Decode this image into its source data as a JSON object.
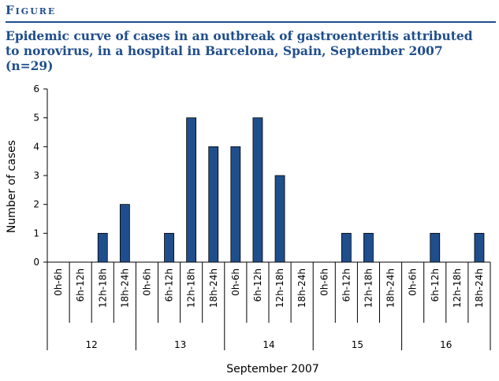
{
  "header": {
    "figure_label": "Figure",
    "title": "Epidemic curve of cases in an outbreak of gastroenteritis attributed to norovirus, in a hospital in Barcelona, Spain, September 2007 (n=29)"
  },
  "colors": {
    "bar": "#1f4e8c",
    "accent": "#1f4e8c"
  },
  "chart_data": {
    "type": "bar",
    "title": "Epidemic curve of cases in an outbreak of gastroenteritis attributed to norovirus, in a hospital in Barcelona, Spain, September 2007 (n=29)",
    "xlabel": "September 2007",
    "ylabel": "Number of cases",
    "ylim": [
      0,
      6
    ],
    "yticks": [
      0,
      1,
      2,
      3,
      4,
      5,
      6
    ],
    "grid": false,
    "groups": [
      {
        "label": "12",
        "categories": [
          "0h-6h",
          "6h-12h",
          "12h-18h",
          "18h-24h"
        ],
        "values": [
          0,
          0,
          1,
          2
        ]
      },
      {
        "label": "13",
        "categories": [
          "0h-6h",
          "6h-12h",
          "12h-18h",
          "18h-24h"
        ],
        "values": [
          0,
          1,
          5,
          4
        ]
      },
      {
        "label": "14",
        "categories": [
          "0h-6h",
          "6h-12h",
          "12h-18h",
          "18h-24h"
        ],
        "values": [
          4,
          5,
          3,
          0
        ]
      },
      {
        "label": "15",
        "categories": [
          "0h-6h",
          "6h-12h",
          "12h-18h",
          "18h-24h"
        ],
        "values": [
          0,
          1,
          1,
          0
        ]
      },
      {
        "label": "16",
        "categories": [
          "0h-6h",
          "6h-12h",
          "12h-18h",
          "18h-24h"
        ],
        "values": [
          0,
          1,
          0,
          1
        ]
      }
    ]
  }
}
